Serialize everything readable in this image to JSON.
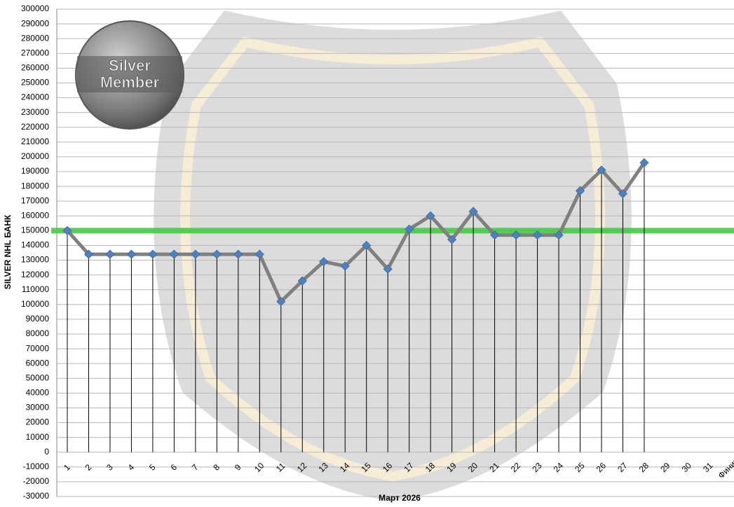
{
  "chart_data": {
    "type": "line",
    "y_label": "SILVER NHL  БАНК",
    "x_label": "Март 2026",
    "categories": [
      "1",
      "2",
      "3",
      "4",
      "5",
      "6",
      "7",
      "8",
      "9",
      "10",
      "11",
      "12",
      "13",
      "14",
      "15",
      "16",
      "17",
      "18",
      "19",
      "20",
      "21",
      "22",
      "23",
      "24",
      "25",
      "26",
      "27",
      "28",
      "29",
      "30",
      "31",
      "Финиш"
    ],
    "series": [
      {
        "name": "SILVER NHL  БАНК",
        "color": "#808080",
        "marker_color": "#4f81bd",
        "values": [
          150000,
          134000,
          134000,
          134000,
          134000,
          134000,
          134000,
          134000,
          134000,
          134000,
          102000,
          116000,
          129000,
          126000,
          140000,
          124000,
          151000,
          160000,
          144000,
          163000,
          147000,
          147000,
          147000,
          147000,
          177000,
          191000,
          175000,
          196000,
          null,
          null,
          null,
          null
        ]
      }
    ],
    "reference_line": {
      "value": 150000,
      "color": "#44cc44"
    },
    "ylim": [
      -30000,
      300000
    ],
    "yticks": [
      -30000,
      -20000,
      -10000,
      0,
      10000,
      20000,
      30000,
      40000,
      50000,
      60000,
      70000,
      80000,
      90000,
      100000,
      110000,
      120000,
      130000,
      140000,
      150000,
      160000,
      170000,
      180000,
      190000,
      200000,
      210000,
      220000,
      230000,
      240000,
      250000,
      260000,
      270000,
      280000,
      290000,
      300000
    ],
    "grid": true,
    "badge": {
      "line1": "Silver",
      "line2": "Member"
    }
  }
}
